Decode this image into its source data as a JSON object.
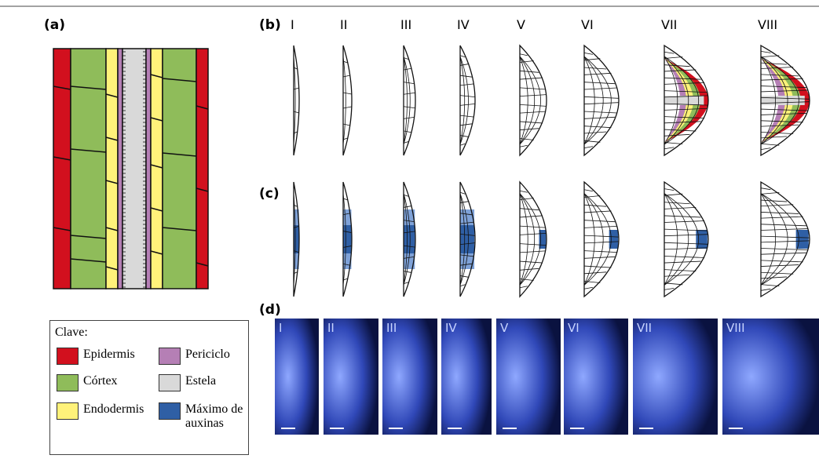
{
  "panels": {
    "a": "(a)",
    "b": "(b)",
    "c": "(c)",
    "d": "(d)"
  },
  "stages": [
    "I",
    "II",
    "III",
    "IV",
    "V",
    "VI",
    "VII",
    "VIII"
  ],
  "key": {
    "title": "Clave:",
    "items": [
      {
        "label": "Epidermis",
        "color": "#d2101e"
      },
      {
        "label": "Periciclo",
        "color": "#b57fb5"
      },
      {
        "label": "Córtex",
        "color": "#8fbc5a"
      },
      {
        "label": "Estela",
        "color": "#d9d9d9"
      },
      {
        "label": "Endodermis",
        "color": "#fff27a"
      },
      {
        "label": "Máximo de auxinas",
        "color": "#2f5fa5"
      }
    ]
  }
}
